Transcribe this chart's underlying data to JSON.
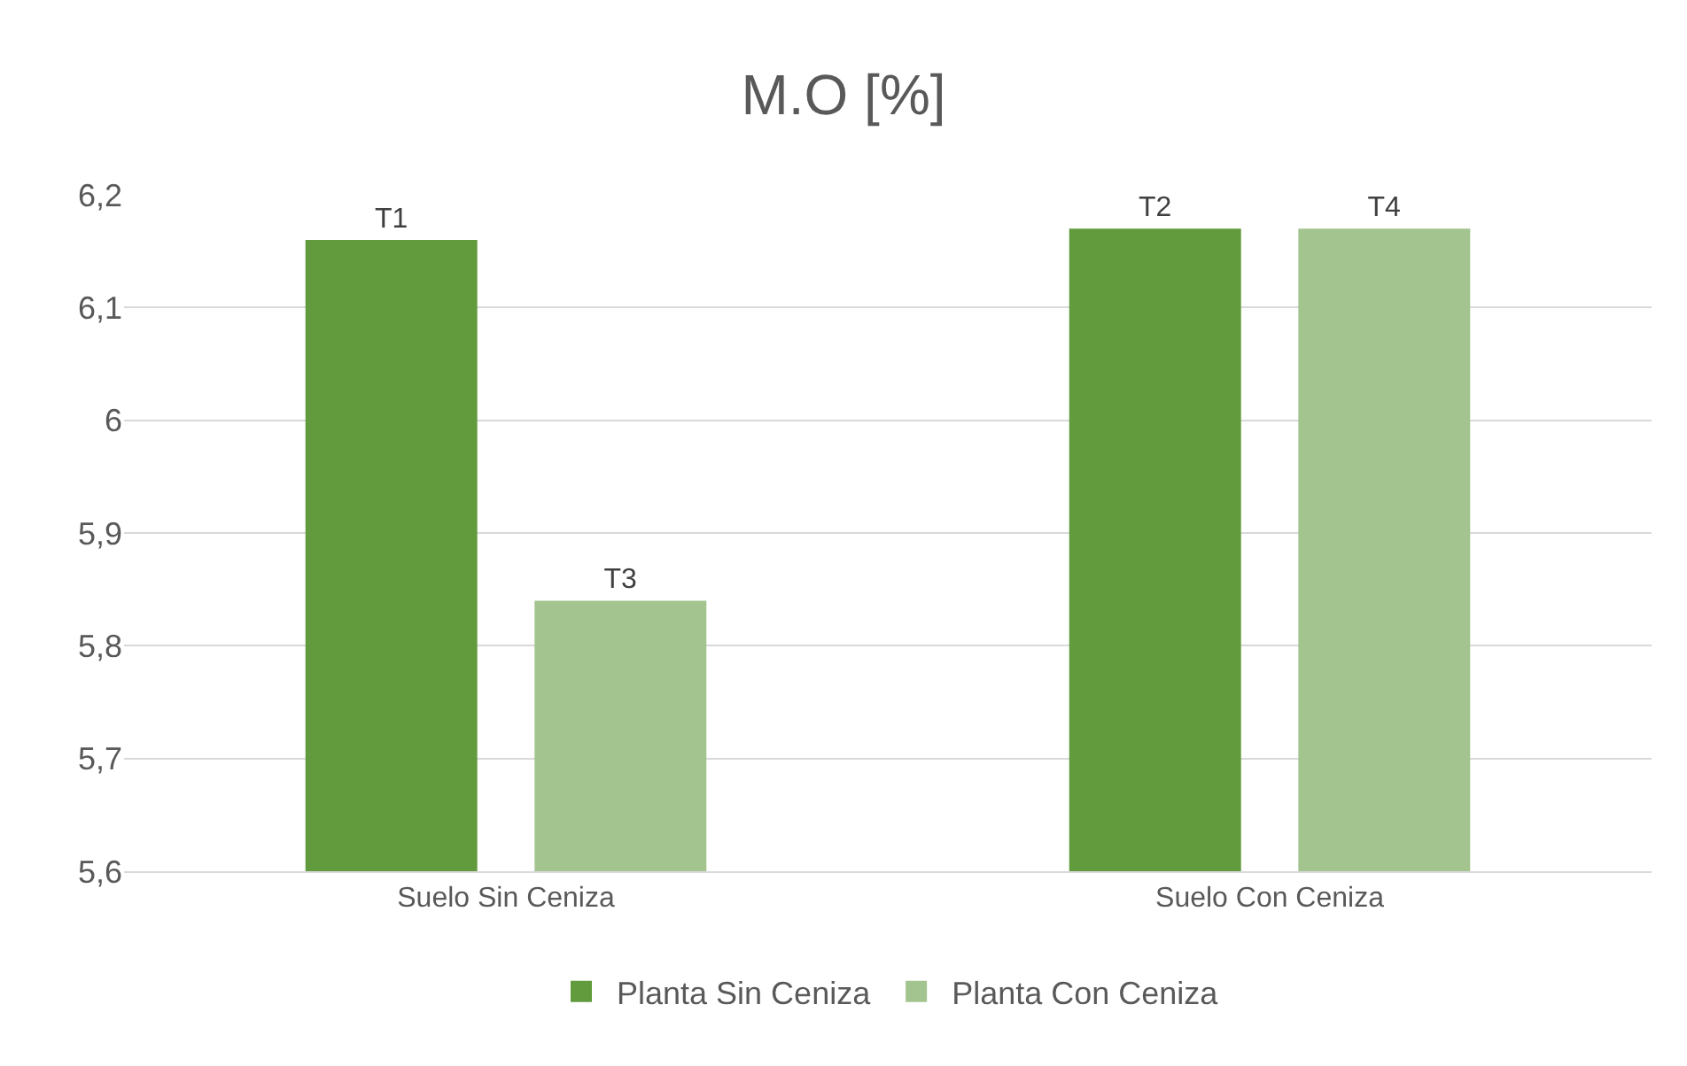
{
  "chart_data": {
    "type": "bar",
    "title": "M.O [%]",
    "categories": [
      "Suelo Sin Ceniza",
      "Suelo Con Ceniza"
    ],
    "series": [
      {
        "name": "Planta Sin Ceniza",
        "color": "#629b3e",
        "values": [
          6.16,
          6.17
        ],
        "value_labels": [
          "T1",
          "T2"
        ]
      },
      {
        "name": "Planta Con Ceniza",
        "color": "#a3c48f",
        "values": [
          5.84,
          6.17
        ],
        "value_labels": [
          "T3",
          "T4"
        ]
      }
    ],
    "ylim": [
      5.6,
      6.2
    ],
    "yticks": [
      {
        "value": 5.6,
        "label": "5,6"
      },
      {
        "value": 5.7,
        "label": "5,7"
      },
      {
        "value": 5.8,
        "label": "5,8"
      },
      {
        "value": 5.9,
        "label": "5,9"
      },
      {
        "value": 6,
        "label": "6"
      },
      {
        "value": 6.1,
        "label": "6,1"
      },
      {
        "value": 6.2,
        "label": "6,2"
      }
    ],
    "grid": "y",
    "legend": "bottom"
  }
}
